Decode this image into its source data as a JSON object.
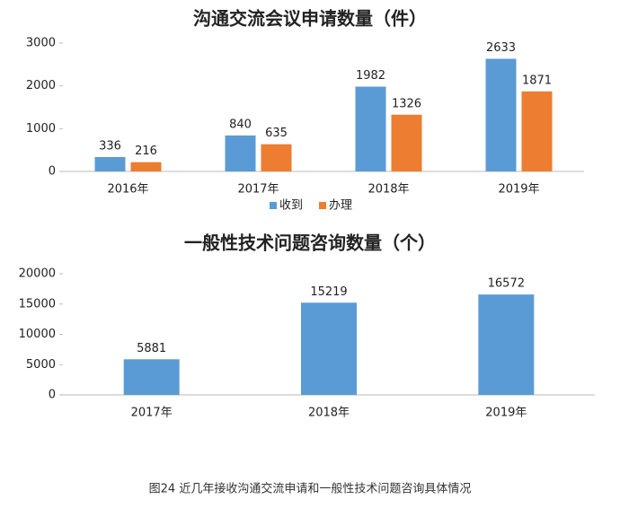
{
  "chart_data": [
    {
      "type": "bar",
      "title": "沟通交流会议申请数量（件）",
      "categories": [
        "2016年",
        "2017年",
        "2018年",
        "2019年"
      ],
      "series": [
        {
          "name": "收到",
          "color": "#5b9bd5",
          "values": [
            336,
            840,
            1982,
            2633
          ]
        },
        {
          "name": "办理",
          "color": "#ed7d31",
          "values": [
            216,
            635,
            1326,
            1871
          ]
        }
      ],
      "ylim": [
        0,
        3000
      ],
      "yticks": [
        0,
        1000,
        2000,
        3000
      ],
      "legend": "bottom"
    },
    {
      "type": "bar",
      "title": "一般性技术问题咨询数量（个）",
      "categories": [
        "2017年",
        "2018年",
        "2019年"
      ],
      "values": [
        5881,
        15219,
        16572
      ],
      "color": "#5b9bd5",
      "ylim": [
        0,
        20000
      ],
      "yticks": [
        0,
        5000,
        10000,
        15000,
        20000
      ]
    }
  ],
  "caption": "图24 近几年接收沟通交流申请和一般性技术问题咨询具体情况"
}
